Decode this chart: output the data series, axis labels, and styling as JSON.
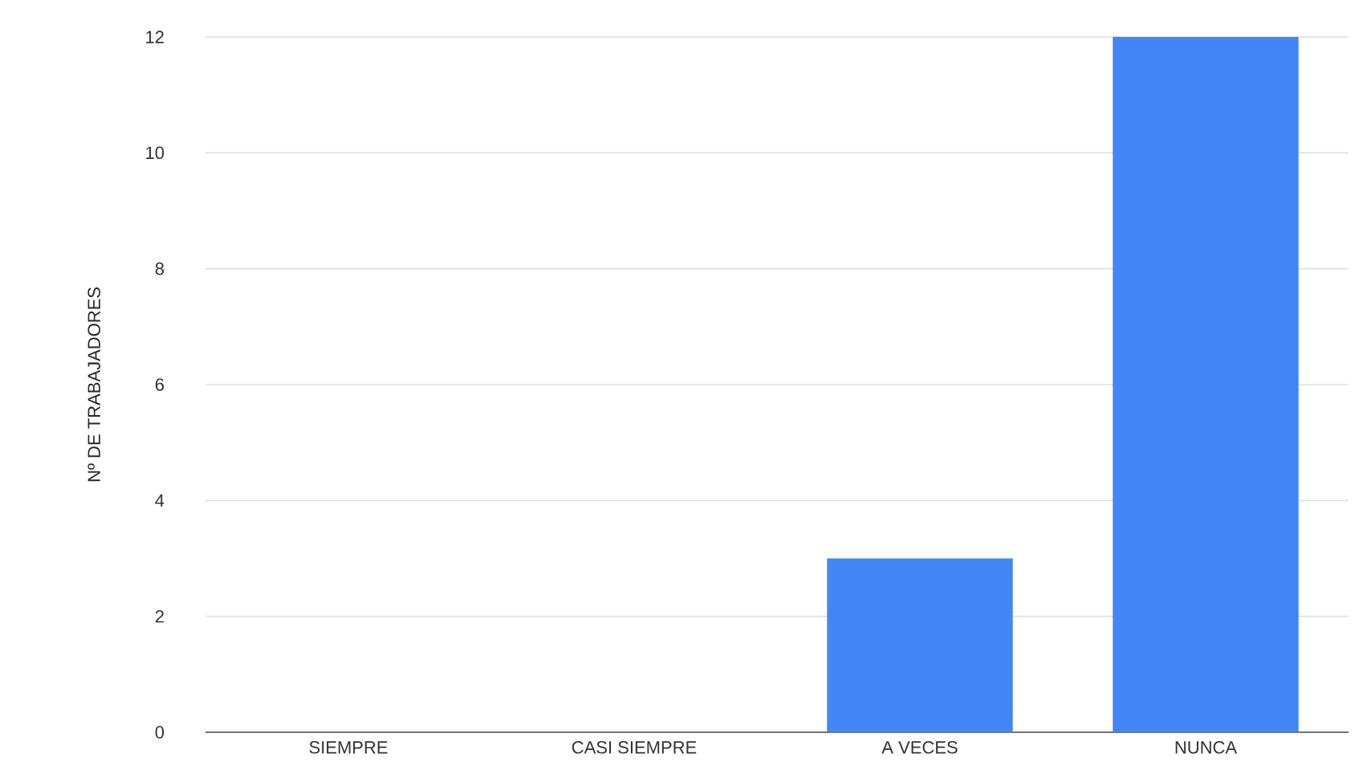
{
  "chart_data": {
    "type": "bar",
    "ylabel": "Nº DE TRABAJADORES",
    "categories": [
      "SIEMPRE",
      "CASI SIEMPRE",
      "A VECES",
      "NUNCA"
    ],
    "values": [
      0,
      0,
      3,
      12
    ],
    "color": "#4285f4",
    "ylim": [
      0,
      12
    ],
    "yticks": [
      0,
      2,
      4,
      6,
      8,
      10,
      12
    ],
    "grid": "y"
  }
}
